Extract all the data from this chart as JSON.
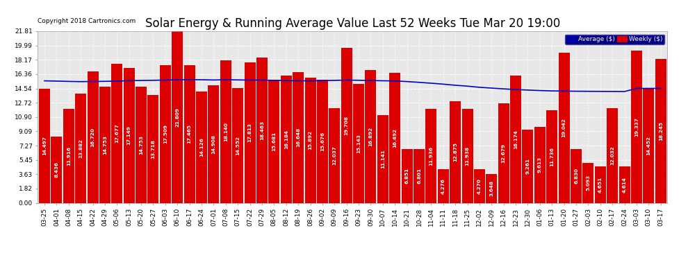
{
  "title": "Solar Energy & Running Average Value Last 52 Weeks Tue Mar 20 19:00",
  "copyright": "Copyright 2018 Cartronics.com",
  "yticks": [
    0.0,
    1.82,
    3.63,
    5.45,
    7.27,
    9.09,
    10.9,
    12.72,
    14.54,
    16.36,
    18.17,
    19.99,
    21.81
  ],
  "bar_color": "#dd0000",
  "bar_edge_color": "#cc0000",
  "avg_line_color": "#0000cc",
  "background_color": "#ffffff",
  "plot_bg_color": "#e8e8e8",
  "legend_bg_color": "#000080",
  "categories": [
    "03-25",
    "04-01",
    "04-08",
    "04-15",
    "04-22",
    "04-29",
    "05-06",
    "05-13",
    "05-20",
    "05-27",
    "06-03",
    "06-10",
    "06-17",
    "06-24",
    "07-01",
    "07-08",
    "07-15",
    "07-22",
    "07-29",
    "08-05",
    "08-12",
    "08-19",
    "08-26",
    "09-02",
    "09-09",
    "09-16",
    "09-23",
    "09-30",
    "10-07",
    "10-14",
    "10-21",
    "10-28",
    "11-04",
    "11-11",
    "11-18",
    "11-25",
    "12-02",
    "12-09",
    "12-16",
    "12-23",
    "12-30",
    "01-06",
    "01-13",
    "01-20",
    "01-27",
    "02-03",
    "02-10",
    "02-17",
    "02-24",
    "03-03",
    "03-10",
    "03-17"
  ],
  "values": [
    14.497,
    8.436,
    11.916,
    13.882,
    16.72,
    14.753,
    17.677,
    17.149,
    14.753,
    13.718,
    17.509,
    21.809,
    17.465,
    14.126,
    14.908,
    18.14,
    14.552,
    17.813,
    18.463,
    15.681,
    16.184,
    16.648,
    15.892,
    15.676,
    12.037,
    19.708,
    15.143,
    16.892,
    11.141,
    16.492,
    6.851,
    6.801,
    11.936,
    4.276,
    12.875,
    11.938,
    4.27,
    3.648,
    12.679,
    16.174,
    9.261,
    9.613,
    11.736,
    19.042,
    6.83,
    5.093,
    4.651,
    12.032,
    4.614,
    19.337,
    14.452,
    18.245
  ],
  "avg_values": [
    15.5,
    15.47,
    15.43,
    15.4,
    15.42,
    15.44,
    15.47,
    15.52,
    15.55,
    15.57,
    15.6,
    15.63,
    15.66,
    15.64,
    15.61,
    15.64,
    15.62,
    15.6,
    15.59,
    15.56,
    15.53,
    15.51,
    15.5,
    15.53,
    15.56,
    15.6,
    15.57,
    15.54,
    15.51,
    15.49,
    15.41,
    15.31,
    15.2,
    15.08,
    14.94,
    14.83,
    14.68,
    14.58,
    14.48,
    14.4,
    14.33,
    14.27,
    14.22,
    14.2,
    14.18,
    14.17,
    14.16,
    14.15,
    14.14,
    14.54,
    14.54,
    14.54
  ],
  "title_fontsize": 12,
  "tick_fontsize": 6.5,
  "value_fontsize": 5.2
}
